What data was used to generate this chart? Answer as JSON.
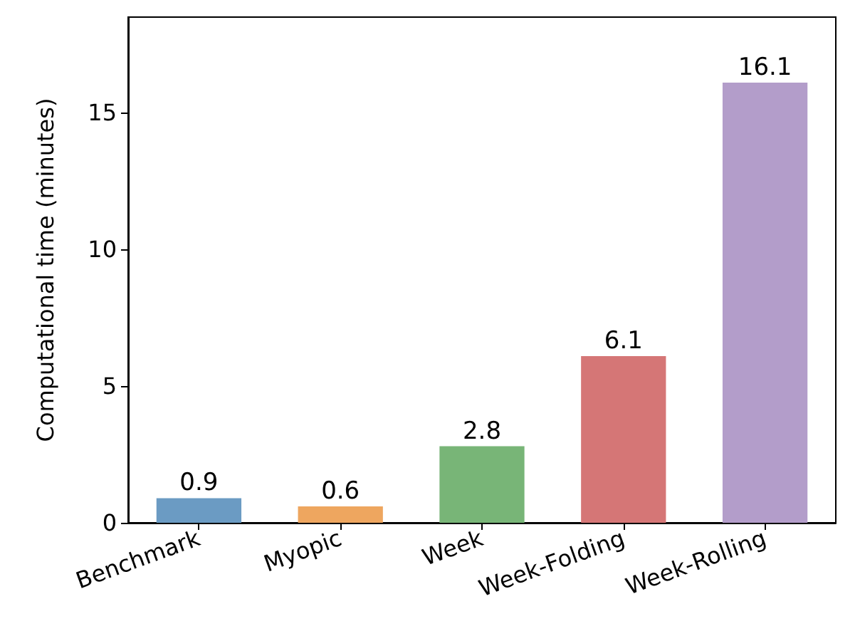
{
  "chart_data": {
    "type": "bar",
    "ylabel": "Computational time (minutes)",
    "categories": [
      "Benchmark",
      "Myopic",
      "Week",
      "Week-Folding",
      "Week-Rolling"
    ],
    "values": [
      0.9,
      0.6,
      2.8,
      6.1,
      16.1
    ],
    "colors": [
      "#6b9bc3",
      "#eea65f",
      "#78b577",
      "#d57676",
      "#b39dca"
    ],
    "ylim": [
      0,
      18.5
    ],
    "yticks": [
      0,
      5,
      10,
      15
    ],
    "data_labels": true,
    "grid": false
  }
}
